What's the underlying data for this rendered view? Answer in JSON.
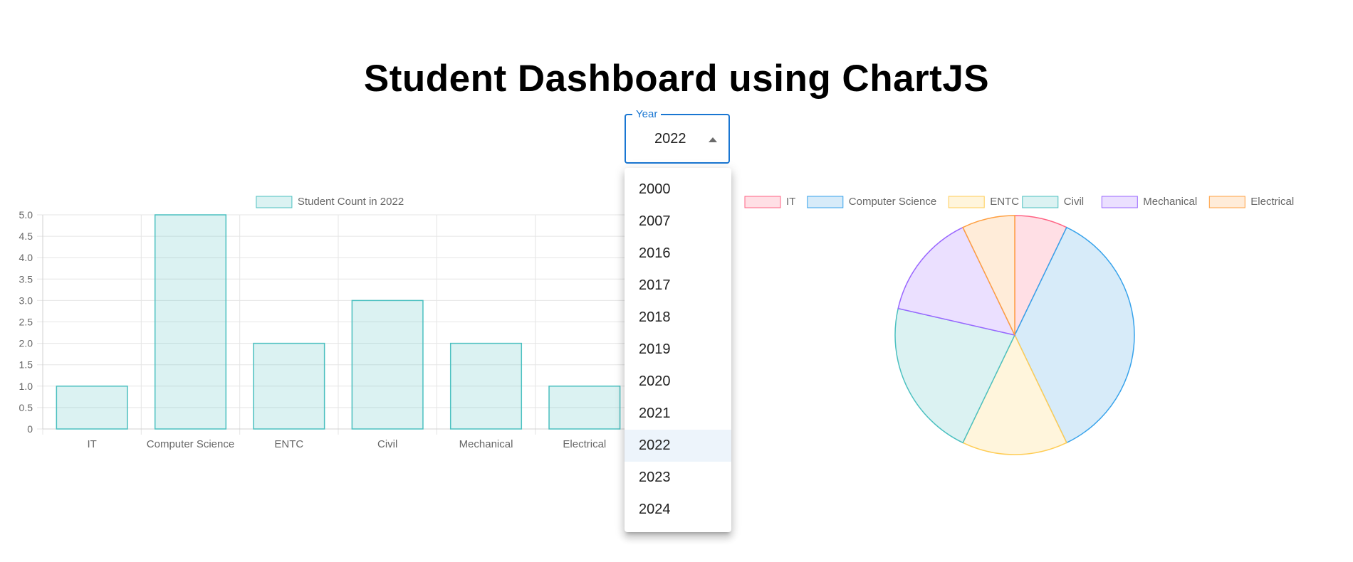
{
  "page": {
    "title": "Student Dashboard using ChartJS"
  },
  "year_select": {
    "label": "Year",
    "value": "2022",
    "options": [
      "2000",
      "2007",
      "2016",
      "2017",
      "2018",
      "2019",
      "2020",
      "2021",
      "2022",
      "2023",
      "2024"
    ],
    "selected_index": 8,
    "accent_color": "#1976d2"
  },
  "chart_data": [
    {
      "type": "bar",
      "categories": [
        "IT",
        "Computer Science",
        "ENTC",
        "Civil",
        "Mechanical",
        "Electrical"
      ],
      "series": [
        {
          "name": "Student Count in 2022",
          "values": [
            1,
            5,
            2,
            3,
            2,
            1
          ],
          "fill": "rgba(75,192,192,0.2)",
          "stroke": "#4bc0c0"
        }
      ],
      "y_ticks": [
        "0",
        "0.5",
        "1.0",
        "1.5",
        "2.0",
        "2.5",
        "3.0",
        "3.5",
        "4.0",
        "4.5",
        "5.0"
      ],
      "ylim": [
        0,
        5
      ],
      "grid": true,
      "legend": "top"
    },
    {
      "type": "pie",
      "labels": [
        "IT",
        "Computer Science",
        "ENTC",
        "Civil",
        "Mechanical",
        "Electrical"
      ],
      "values": [
        1,
        5,
        2,
        3,
        2,
        1
      ],
      "colors": [
        {
          "fill": "#ffdfe5",
          "stroke": "#ff6384"
        },
        {
          "fill": "#d7ebf9",
          "stroke": "#36a2eb"
        },
        {
          "fill": "#fff5dc",
          "stroke": "#ffcd56"
        },
        {
          "fill": "#dbf2f2",
          "stroke": "#4bc0c0"
        },
        {
          "fill": "#ebe0ff",
          "stroke": "#9966ff"
        },
        {
          "fill": "#ffecd9",
          "stroke": "#ff9f40"
        }
      ],
      "legend": "top"
    }
  ]
}
